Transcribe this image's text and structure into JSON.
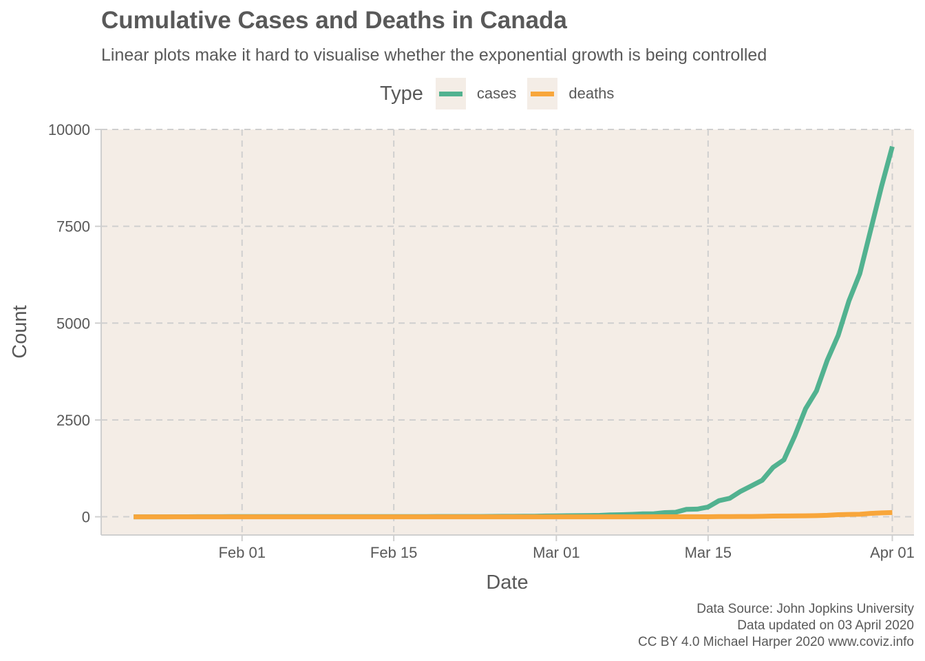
{
  "chart_data": {
    "type": "line",
    "title": "Cumulative Cases and Deaths in Canada",
    "subtitle": "Linear plots make it hard to visualise whether the exponential growth is being controlled",
    "xlabel": "Date",
    "ylabel": "Count",
    "legend_title": "Type",
    "legend_position": "top",
    "grid": true,
    "background": "#f4ede6",
    "grid_color": "#cfcfcf",
    "ylim": [
      -470,
      10000
    ],
    "xlim": [
      "2020-01-19",
      "2020-04-03"
    ],
    "y_ticks": [
      0,
      2500,
      5000,
      7500,
      10000
    ],
    "y_tick_labels": [
      "0",
      "2500",
      "5000",
      "7500",
      "10000"
    ],
    "x_ticks": [
      "2020-02-01",
      "2020-02-15",
      "2020-03-01",
      "2020-03-15",
      "2020-04-01"
    ],
    "x_tick_labels": [
      "Feb 01",
      "Feb 15",
      "Mar 01",
      "Mar 15",
      "Apr 01"
    ],
    "x": [
      "2020-01-22",
      "2020-01-23",
      "2020-01-24",
      "2020-01-25",
      "2020-01-26",
      "2020-01-27",
      "2020-01-28",
      "2020-01-29",
      "2020-01-30",
      "2020-01-31",
      "2020-02-01",
      "2020-02-02",
      "2020-02-03",
      "2020-02-04",
      "2020-02-05",
      "2020-02-06",
      "2020-02-07",
      "2020-02-08",
      "2020-02-09",
      "2020-02-10",
      "2020-02-11",
      "2020-02-12",
      "2020-02-13",
      "2020-02-14",
      "2020-02-15",
      "2020-02-16",
      "2020-02-17",
      "2020-02-18",
      "2020-02-19",
      "2020-02-20",
      "2020-02-21",
      "2020-02-22",
      "2020-02-23",
      "2020-02-24",
      "2020-02-25",
      "2020-02-26",
      "2020-02-27",
      "2020-02-28",
      "2020-02-29",
      "2020-03-01",
      "2020-03-02",
      "2020-03-03",
      "2020-03-04",
      "2020-03-05",
      "2020-03-06",
      "2020-03-07",
      "2020-03-08",
      "2020-03-09",
      "2020-03-10",
      "2020-03-11",
      "2020-03-12",
      "2020-03-13",
      "2020-03-14",
      "2020-03-15",
      "2020-03-16",
      "2020-03-17",
      "2020-03-18",
      "2020-03-19",
      "2020-03-20",
      "2020-03-21",
      "2020-03-22",
      "2020-03-23",
      "2020-03-24",
      "2020-03-25",
      "2020-03-26",
      "2020-03-27",
      "2020-03-28",
      "2020-03-29",
      "2020-03-30",
      "2020-03-31",
      "2020-04-01"
    ],
    "series": [
      {
        "name": "cases",
        "color": "#52b290",
        "values": [
          0,
          0,
          0,
          0,
          1,
          1,
          2,
          2,
          2,
          4,
          4,
          4,
          4,
          4,
          5,
          5,
          7,
          7,
          7,
          7,
          7,
          7,
          7,
          7,
          7,
          7,
          7,
          7,
          8,
          8,
          9,
          9,
          9,
          10,
          11,
          11,
          13,
          14,
          20,
          24,
          27,
          30,
          33,
          37,
          49,
          54,
          64,
          77,
          79,
          108,
          117,
          193,
          198,
          252,
          415,
          478,
          657,
          800,
          943,
          1277,
          1469,
          2088,
          2790,
          3251,
          4042,
          4682,
          5576,
          6280,
          7398,
          8527,
          9560
        ]
      },
      {
        "name": "deaths",
        "color": "#f8a63b",
        "values": [
          0,
          0,
          0,
          0,
          0,
          0,
          0,
          0,
          0,
          0,
          0,
          0,
          0,
          0,
          0,
          0,
          0,
          0,
          0,
          0,
          0,
          0,
          0,
          0,
          0,
          0,
          0,
          0,
          0,
          0,
          0,
          0,
          0,
          0,
          0,
          0,
          0,
          0,
          0,
          0,
          0,
          0,
          0,
          0,
          0,
          0,
          0,
          0,
          1,
          1,
          1,
          1,
          1,
          1,
          4,
          5,
          8,
          9,
          12,
          19,
          21,
          25,
          26,
          30,
          38,
          54,
          61,
          65,
          89,
          101,
          109
        ]
      }
    ]
  },
  "caption": {
    "line1": "Data Source: John Jopkins University",
    "line2": "Data updated on 03 April 2020",
    "line3": "CC BY 4.0 Michael Harper 2020 www.coviz.info"
  }
}
